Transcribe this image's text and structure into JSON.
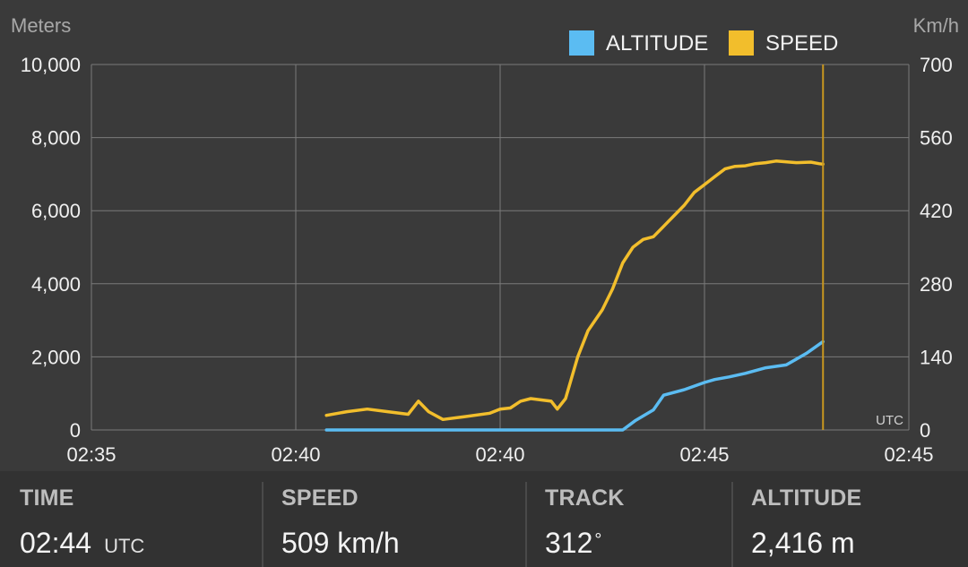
{
  "chart_data": {
    "type": "line",
    "left_axis_label": "Meters",
    "right_axis_label": "Km/h",
    "y_left_ticks": [
      "10,000",
      "8,000",
      "6,000",
      "4,000",
      "2,000",
      "0"
    ],
    "y_right_ticks": [
      "700",
      "560",
      "420",
      "280",
      "140",
      "0"
    ],
    "ylim_left": [
      0,
      10000
    ],
    "ylim_right": [
      0,
      700
    ],
    "x_tick_labels": [
      "02:35",
      "02:40",
      "02:40",
      "02:45",
      "02:45"
    ],
    "x_range": [
      0,
      4
    ],
    "x_axis_unit": "UTC",
    "grid": true,
    "legend_position": "top-right",
    "cursor_x": 3.58,
    "series": [
      {
        "name": "ALTITUDE",
        "axis": "left",
        "color": "#5bbcf2",
        "x": [
          1.15,
          2.0,
          2.5,
          2.6,
          2.66,
          2.75,
          2.8,
          2.9,
          3.0,
          3.05,
          3.12,
          3.2,
          3.3,
          3.4,
          3.5,
          3.58
        ],
        "y": [
          0,
          0,
          0,
          0,
          250,
          550,
          950,
          1100,
          1300,
          1380,
          1450,
          1550,
          1700,
          1780,
          2100,
          2416
        ]
      },
      {
        "name": "SPEED",
        "axis": "right",
        "color": "#f2be2c",
        "x": [
          1.15,
          1.25,
          1.35,
          1.45,
          1.55,
          1.6,
          1.65,
          1.72,
          1.82,
          1.95,
          2.0,
          2.05,
          2.1,
          2.15,
          2.25,
          2.28,
          2.32,
          2.38,
          2.43,
          2.5,
          2.55,
          2.6,
          2.65,
          2.7,
          2.75,
          2.8,
          2.85,
          2.9,
          2.95,
          3.0,
          3.05,
          3.1,
          3.15,
          3.2,
          3.25,
          3.3,
          3.35,
          3.45,
          3.52,
          3.56,
          3.58
        ],
        "y": [
          28,
          35,
          40,
          35,
          30,
          55,
          35,
          20,
          25,
          32,
          40,
          42,
          55,
          60,
          55,
          40,
          60,
          140,
          190,
          230,
          270,
          320,
          350,
          365,
          370,
          390,
          410,
          430,
          455,
          470,
          485,
          500,
          505,
          506,
          510,
          512,
          515,
          512,
          513,
          510,
          509
        ]
      }
    ]
  },
  "info": {
    "time": {
      "label": "TIME",
      "value": "02:44",
      "suffix": "UTC"
    },
    "speed": {
      "label": "SPEED",
      "value": "509 km/h"
    },
    "track": {
      "label": "TRACK",
      "value": "312",
      "suffix": "°"
    },
    "altitude": {
      "label": "ALTITUDE",
      "value": "2,416 m"
    }
  }
}
